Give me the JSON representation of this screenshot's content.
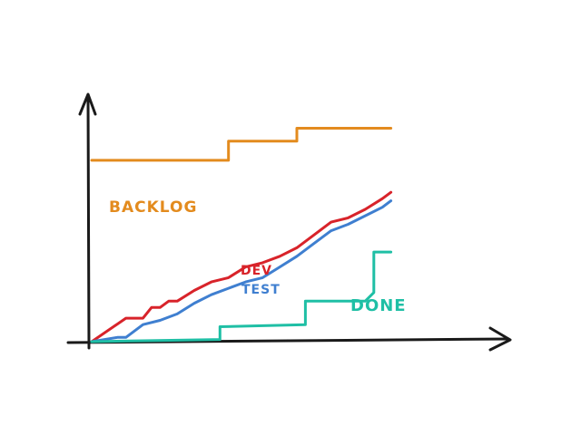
{
  "chart_data": {
    "type": "line",
    "title": "",
    "xlabel": "",
    "ylabel": "",
    "grid": false,
    "legend": "none",
    "xlim": [
      0,
      36
    ],
    "ylim": [
      0,
      110
    ],
    "series": [
      {
        "name": "BACKLOG",
        "color": "#e38b1e",
        "points": [
          [
            0,
            85
          ],
          [
            16,
            85
          ],
          [
            16,
            94
          ],
          [
            24,
            94
          ],
          [
            24,
            100
          ],
          [
            35,
            100
          ]
        ]
      },
      {
        "name": "DEV",
        "color": "#d8232a",
        "points": [
          [
            0,
            0
          ],
          [
            4,
            11
          ],
          [
            6,
            11
          ],
          [
            7,
            16
          ],
          [
            8,
            16
          ],
          [
            9,
            19
          ],
          [
            10,
            19
          ],
          [
            12,
            24
          ],
          [
            14,
            28
          ],
          [
            16,
            30
          ],
          [
            18,
            35
          ],
          [
            20,
            37
          ],
          [
            22,
            40
          ],
          [
            24,
            44
          ],
          [
            26,
            50
          ],
          [
            28,
            56
          ],
          [
            30,
            58
          ],
          [
            32,
            62
          ],
          [
            34,
            67
          ],
          [
            35,
            70
          ]
        ]
      },
      {
        "name": "TEST",
        "color": "#3f7fd0",
        "points": [
          [
            0,
            0
          ],
          [
            3,
            2
          ],
          [
            4,
            2
          ],
          [
            6,
            8
          ],
          [
            8,
            10
          ],
          [
            10,
            13
          ],
          [
            12,
            18
          ],
          [
            14,
            22
          ],
          [
            16,
            25
          ],
          [
            18,
            28
          ],
          [
            20,
            30
          ],
          [
            22,
            35
          ],
          [
            24,
            40
          ],
          [
            26,
            46
          ],
          [
            28,
            52
          ],
          [
            30,
            55
          ],
          [
            32,
            59
          ],
          [
            34,
            63
          ],
          [
            35,
            66
          ]
        ]
      },
      {
        "name": "DONE",
        "color": "#1fbfa5",
        "points": [
          [
            0,
            0
          ],
          [
            15,
            1
          ],
          [
            15,
            7
          ],
          [
            25,
            8
          ],
          [
            25,
            19
          ],
          [
            32,
            19
          ],
          [
            33,
            23
          ],
          [
            33,
            42
          ],
          [
            35,
            42
          ]
        ]
      }
    ]
  }
}
